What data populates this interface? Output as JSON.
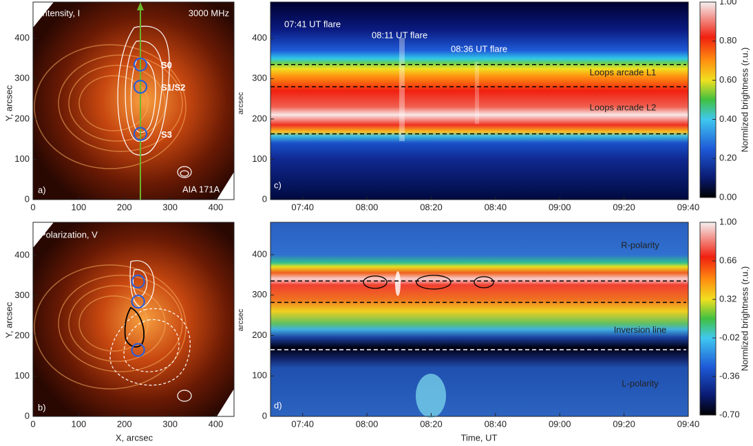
{
  "chart_data": [
    {
      "type": "image",
      "xlim": [
        0,
        440
      ],
      "ylim": [
        0,
        490
      ],
      "xticks": [
        0,
        100,
        200,
        300,
        400
      ],
      "yticks": [
        0,
        100,
        200,
        300,
        400
      ],
      "y_label": "Y, arcsec",
      "annotations": [
        "Intensity, I",
        "3000 MHz",
        "AIA 171A",
        "a)"
      ],
      "cut_x": 235,
      "sources": [
        {
          "label": "S0",
          "x": 235,
          "y": 335
        },
        {
          "label": "S1/S2",
          "x": 235,
          "y": 280
        },
        {
          "label": "S3",
          "x": 235,
          "y": 163
        }
      ]
    },
    {
      "type": "image",
      "xlim": [
        0,
        440
      ],
      "ylim": [
        0,
        482
      ],
      "xticks": [
        0,
        100,
        200,
        300,
        400
      ],
      "yticks": [
        0,
        100,
        200,
        300,
        400
      ],
      "x_label": "X, arcsec",
      "y_label": "Y, arcsec",
      "annotations": [
        "Polarization, V",
        "b)"
      ],
      "sources": [
        {
          "x": 230,
          "y": 335
        },
        {
          "x": 230,
          "y": 285
        },
        {
          "x": 230,
          "y": 165
        }
      ]
    },
    {
      "type": "heatmap",
      "xlim": [
        450,
        580
      ],
      "ylim": [
        0,
        490
      ],
      "xticks": [
        {
          "value": 460,
          "label": "07:40"
        },
        {
          "value": 480,
          "label": "08:00"
        },
        {
          "value": 500,
          "label": "08:20"
        },
        {
          "value": 520,
          "label": "08:40"
        },
        {
          "value": 540,
          "label": "09:00"
        },
        {
          "value": 560,
          "label": "09:20"
        },
        {
          "value": 580,
          "label": "09:40"
        }
      ],
      "yticks": [
        0,
        100,
        200,
        300,
        400
      ],
      "y_label": "arcsec",
      "annotations": [
        "07:41 UT flare",
        "08:11 UT flare",
        "08:36 UT flare",
        "Loops arcade L1",
        "Loops arcade L2",
        "c)"
      ],
      "levels": [
        {
          "y": 335,
          "color": "#000000"
        },
        {
          "y": 280,
          "color": "#000000"
        },
        {
          "y": 163,
          "color": "#000000"
        }
      ],
      "colorbar": {
        "label": "Normlized brightness (r.u.)",
        "lim": [
          0,
          1
        ],
        "ticks": [
          {
            "value": 0,
            "label": "0.00"
          },
          {
            "value": 0.2,
            "label": "0.20"
          },
          {
            "value": 0.4,
            "label": "0.40"
          },
          {
            "value": 0.6,
            "label": "0.60"
          },
          {
            "value": 0.8,
            "label": "0.80"
          },
          {
            "value": 1,
            "label": "1.00"
          }
        ]
      }
    },
    {
      "type": "heatmap",
      "xlim": [
        450,
        580
      ],
      "ylim": [
        0,
        480
      ],
      "xticks": [
        {
          "value": 460,
          "label": "07:40"
        },
        {
          "value": 480,
          "label": "08:00"
        },
        {
          "value": 500,
          "label": "08:20"
        },
        {
          "value": 520,
          "label": "08:40"
        },
        {
          "value": 540,
          "label": "09:00"
        },
        {
          "value": 560,
          "label": "09:20"
        },
        {
          "value": 580,
          "label": "09:40"
        }
      ],
      "yticks": [
        0,
        100,
        200,
        300,
        400
      ],
      "x_label": "Time, UT",
      "y_label": "arcsec",
      "annotations": [
        "R-polarity",
        "Inversion line",
        "L-polarity",
        "d)"
      ],
      "levels": [
        {
          "y": 335,
          "color": "#000000"
        },
        {
          "y": 282,
          "color": "#000000"
        },
        {
          "y": 165,
          "color": "#ffffff"
        }
      ],
      "colorbar": {
        "label": "Normlized brightness (r.u.)",
        "lim": [
          -0.7,
          1
        ],
        "ticks": [
          {
            "value": 1,
            "label": "1.00"
          },
          0.66,
          0.32,
          -0.02,
          -0.36,
          {
            "value": -0.7,
            "label": "-0.70"
          }
        ]
      }
    }
  ]
}
